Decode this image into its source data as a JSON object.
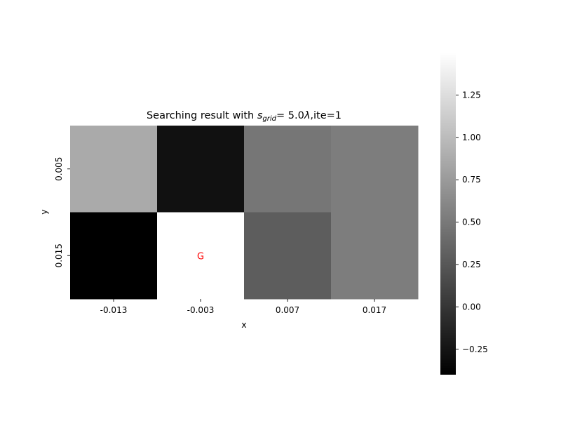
{
  "chart_data": {
    "type": "heatmap",
    "title": {
      "prefix": "Searching result with ",
      "symbol": "s",
      "subscript": "grid",
      "suffix": "= 5.0",
      "lambda": "λ",
      "tail": ",ite=1"
    },
    "xlabel": "x",
    "ylabel": "y",
    "x_categories": [
      "-0.013",
      "-0.003",
      "0.007",
      "0.017"
    ],
    "y_categories": [
      "0.005",
      "0.015"
    ],
    "values": [
      [
        0.87,
        -0.27,
        0.48,
        0.53
      ],
      [
        -0.4,
        1.5,
        0.29,
        0.53
      ]
    ],
    "annotations": [
      {
        "row": 1,
        "col": 1,
        "text": "G",
        "color": "#ff0000"
      }
    ],
    "colormap": "gray",
    "vmin": -0.4,
    "vmax": 1.5,
    "colorbar": {
      "ticks": [
        -0.25,
        0.0,
        0.25,
        0.5,
        0.75,
        1.0,
        1.25
      ],
      "tick_labels": [
        "−0.25",
        "0.00",
        "0.25",
        "0.50",
        "0.75",
        "1.00",
        "1.25"
      ]
    }
  }
}
